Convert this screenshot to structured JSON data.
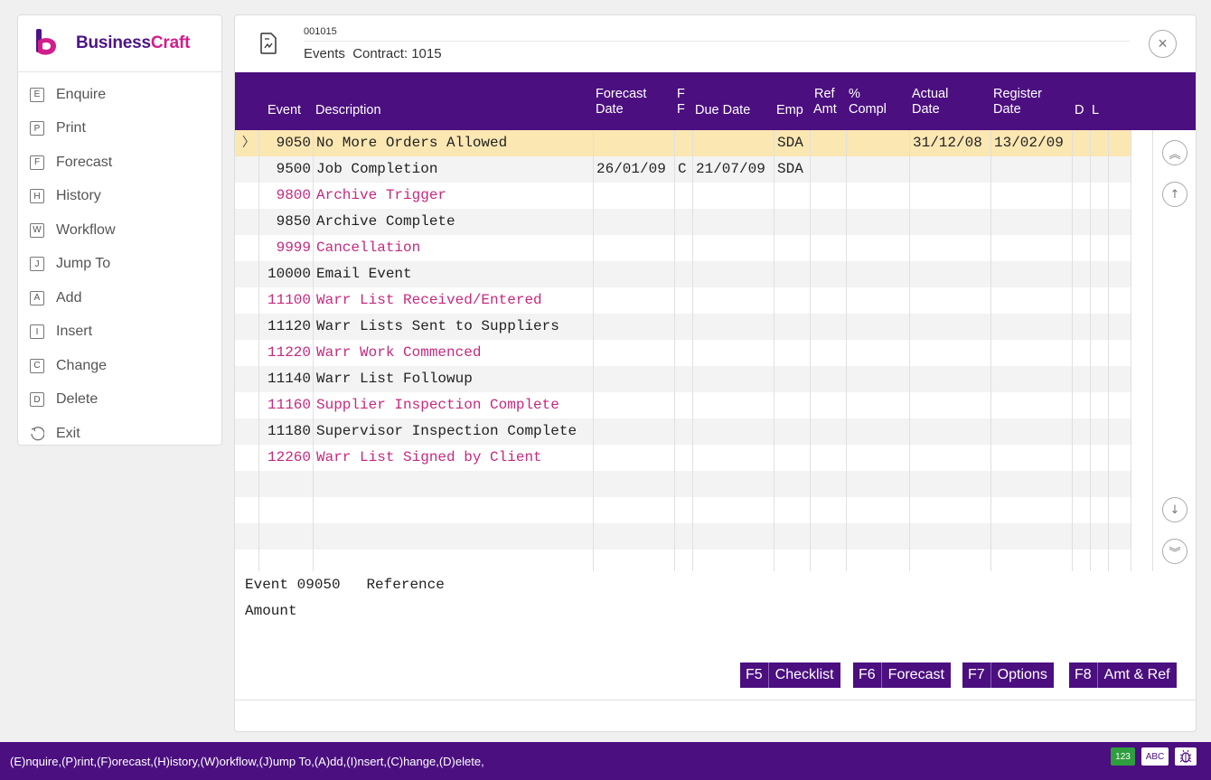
{
  "app": {
    "brand_a": "Business",
    "brand_b": "Craft"
  },
  "menu": [
    {
      "key": "E",
      "label": "Enquire"
    },
    {
      "key": "P",
      "label": "Print"
    },
    {
      "key": "F",
      "label": "Forecast"
    },
    {
      "key": "H",
      "label": "History"
    },
    {
      "key": "W",
      "label": "Workflow"
    },
    {
      "key": "J",
      "label": "Jump To"
    },
    {
      "key": "A",
      "label": "Add"
    },
    {
      "key": "I",
      "label": "Insert"
    },
    {
      "key": "C",
      "label": "Change"
    },
    {
      "key": "D",
      "label": "Delete"
    },
    {
      "key": "",
      "label": "Exit"
    }
  ],
  "window": {
    "code": "001015",
    "title": "Events  Contract: 1015",
    "close_icon": "close-icon"
  },
  "columns": {
    "event": "Event",
    "description": "Description",
    "forecast_date": [
      "Forecast",
      "Date"
    ],
    "ff": [
      "F",
      "F"
    ],
    "due_date": "Due Date",
    "emp": "Emp",
    "ref_amt": [
      "Ref",
      "Amt"
    ],
    "pct_compl": [
      "%",
      "Compl"
    ],
    "actual_date": [
      "Actual",
      "Date"
    ],
    "register_date": [
      "Register",
      "Date"
    ],
    "d": "D",
    "l": "L"
  },
  "rows": [
    {
      "event": "9050",
      "description": "No More Orders Allowed",
      "forecast_date": "",
      "f": "",
      "due_date": "",
      "emp": "SDA",
      "actual_date": "31/12/08",
      "register_date": "13/02/09",
      "selected": true,
      "pink": false
    },
    {
      "event": "9500",
      "description": "Job Completion",
      "forecast_date": "26/01/09",
      "f": "C",
      "due_date": "21/07/09",
      "emp": "SDA",
      "actual_date": "",
      "register_date": "",
      "pink": false
    },
    {
      "event": "9800",
      "description": "Archive Trigger",
      "forecast_date": "",
      "f": "",
      "due_date": "",
      "emp": "",
      "actual_date": "",
      "register_date": "",
      "pink": true
    },
    {
      "event": "9850",
      "description": "Archive Complete",
      "forecast_date": "",
      "f": "",
      "due_date": "",
      "emp": "",
      "actual_date": "",
      "register_date": "",
      "pink": false
    },
    {
      "event": "9999",
      "description": "Cancellation",
      "forecast_date": "",
      "f": "",
      "due_date": "",
      "emp": "",
      "actual_date": "",
      "register_date": "",
      "pink": true
    },
    {
      "event": "10000",
      "description": "Email Event",
      "forecast_date": "",
      "f": "",
      "due_date": "",
      "emp": "",
      "actual_date": "",
      "register_date": "",
      "pink": false
    },
    {
      "event": "11100",
      "description": "Warr List Received/Entered",
      "forecast_date": "",
      "f": "",
      "due_date": "",
      "emp": "",
      "actual_date": "",
      "register_date": "",
      "pink": true
    },
    {
      "event": "11120",
      "description": "Warr Lists Sent to Suppliers",
      "forecast_date": "",
      "f": "",
      "due_date": "",
      "emp": "",
      "actual_date": "",
      "register_date": "",
      "pink": false
    },
    {
      "event": "11220",
      "description": "Warr Work Commenced",
      "forecast_date": "",
      "f": "",
      "due_date": "",
      "emp": "",
      "actual_date": "",
      "register_date": "",
      "pink": true
    },
    {
      "event": "11140",
      "description": "Warr List Followup",
      "forecast_date": "",
      "f": "",
      "due_date": "",
      "emp": "",
      "actual_date": "",
      "register_date": "",
      "pink": false
    },
    {
      "event": "11160",
      "description": "Supplier Inspection Complete",
      "forecast_date": "",
      "f": "",
      "due_date": "",
      "emp": "",
      "actual_date": "",
      "register_date": "",
      "pink": true
    },
    {
      "event": "11180",
      "description": "Supervisor Inspection Complete",
      "forecast_date": "",
      "f": "",
      "due_date": "",
      "emp": "",
      "actual_date": "",
      "register_date": "",
      "pink": false
    },
    {
      "event": "12260",
      "description": "Warr List Signed by Client",
      "forecast_date": "",
      "f": "",
      "due_date": "",
      "emp": "",
      "actual_date": "",
      "register_date": "",
      "pink": true
    }
  ],
  "detail": {
    "event_label": "Event 09050",
    "reference_label": "Reference",
    "amount_label": "Amount"
  },
  "fkeys": [
    {
      "key": "F5",
      "label": "Checklist"
    },
    {
      "key": "F6",
      "label": "Forecast"
    },
    {
      "key": "F7",
      "label": "Options"
    },
    {
      "key": "F8",
      "label": "Amt & Ref"
    }
  ],
  "status": {
    "text": "(E)nquire,(P)rint,(F)orecast,(H)istory,(W)orkflow,(J)ump To,(A)dd,(I)nsert,(C)hange,(D)elete,",
    "badge_num": "123",
    "badge_abc": "ABC"
  },
  "colors": {
    "brand_purple": "#4b0f80",
    "brand_pink": "#d21d8c",
    "selected_row": "#fbe7b2",
    "pink_text": "#c8287e",
    "badge_green": "#2e9e3f"
  }
}
